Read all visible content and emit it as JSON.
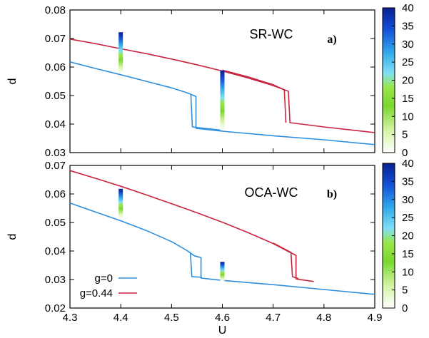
{
  "chart_data": [
    {
      "type": "line",
      "panel_label": "SR-WC",
      "panel_letter": "a)",
      "xlabel": "",
      "ylabel": "d",
      "xlim": [
        4.3,
        4.9
      ],
      "ylim": [
        0.03,
        0.08
      ],
      "yticks": [
        "0.03",
        "0.04",
        "0.05",
        "0.06",
        "0.07",
        "0.08"
      ],
      "series": [
        {
          "name": "g=0",
          "color": "#2f8fdc",
          "points": [
            [
              4.3,
              0.0618
            ],
            [
              4.35,
              0.0595
            ],
            [
              4.4,
              0.0573
            ],
            [
              4.45,
              0.055
            ],
            [
              4.5,
              0.0527
            ],
            [
              4.53,
              0.051
            ],
            [
              4.548,
              0.0497
            ],
            [
              4.548,
              0.0385
            ],
            [
              4.6,
              0.0375
            ],
            [
              4.7,
              0.0359
            ],
            [
              4.8,
              0.0345
            ],
            [
              4.9,
              0.0328
            ]
          ]
        },
        {
          "name": "g=0 (backward)",
          "color": "#2f8fdc",
          "points": [
            [
              4.538,
              0.0502
            ],
            [
              4.541,
              0.039
            ],
            [
              4.6,
              0.0378
            ]
          ]
        },
        {
          "name": "g=0.44",
          "color": "#c9243f",
          "points": [
            [
              4.3,
              0.0698
            ],
            [
              4.35,
              0.0682
            ],
            [
              4.4,
              0.0664
            ],
            [
              4.45,
              0.0647
            ],
            [
              4.5,
              0.0628
            ],
            [
              4.55,
              0.0608
            ],
            [
              4.6,
              0.0586
            ],
            [
              4.65,
              0.0562
            ],
            [
              4.7,
              0.0535
            ],
            [
              4.73,
              0.0515
            ],
            [
              4.733,
              0.0405
            ],
            [
              4.8,
              0.039
            ],
            [
              4.9,
              0.037
            ]
          ]
        },
        {
          "name": "g=0.44 (backward)",
          "color": "#c9243f",
          "points": [
            [
              4.6,
              0.0589
            ],
            [
              4.65,
              0.0566
            ],
            [
              4.7,
              0.0538
            ],
            [
              4.722,
              0.052
            ],
            [
              4.725,
              0.0405
            ]
          ]
        }
      ],
      "colorbars": [
        {
          "x": 4.4,
          "y_range": [
            0.0578,
            0.0722
          ]
        },
        {
          "x": 4.6,
          "y_range": [
            0.0378,
            0.0588
          ]
        }
      ],
      "colorbar_scale": {
        "min": 0,
        "max": 40,
        "ticks": [
          "0",
          "5",
          "10",
          "15",
          "20",
          "25",
          "30",
          "35",
          "40"
        ]
      }
    },
    {
      "type": "line",
      "panel_label": "OCA-WC",
      "panel_letter": "b)",
      "xlabel": "U",
      "ylabel": "d",
      "xlim": [
        4.3,
        4.9
      ],
      "ylim": [
        0.02,
        0.07
      ],
      "xticks": [
        "4.3",
        "4.4",
        "4.5",
        "4.6",
        "4.7",
        "4.8",
        "4.9"
      ],
      "yticks": [
        "0.02",
        "0.03",
        "0.04",
        "0.05",
        "0.06",
        "0.07"
      ],
      "series": [
        {
          "name": "g=0",
          "color": "#2f8fdc",
          "points": [
            [
              4.3,
              0.0568
            ],
            [
              4.35,
              0.0537
            ],
            [
              4.4,
              0.0506
            ],
            [
              4.45,
              0.0472
            ],
            [
              4.5,
              0.0433
            ],
            [
              4.53,
              0.0402
            ],
            [
              4.545,
              0.0383
            ],
            [
              4.558,
              0.0377
            ],
            [
              4.558,
              0.0305
            ],
            [
              4.6,
              0.0297
            ],
            [
              4.7,
              0.0282
            ],
            [
              4.8,
              0.0265
            ],
            [
              4.9,
              0.0248
            ]
          ]
        },
        {
          "name": "g=0 (backward)",
          "color": "#2f8fdc",
          "points": [
            [
              4.537,
              0.0393
            ],
            [
              4.54,
              0.031
            ],
            [
              4.56,
              0.0308
            ]
          ]
        },
        {
          "name": "g=0.44",
          "color": "#c9243f",
          "points": [
            [
              4.3,
              0.0682
            ],
            [
              4.35,
              0.0655
            ],
            [
              4.4,
              0.0627
            ],
            [
              4.45,
              0.0597
            ],
            [
              4.5,
              0.0566
            ],
            [
              4.55,
              0.0534
            ],
            [
              4.6,
              0.0501
            ],
            [
              4.65,
              0.0465
            ],
            [
              4.7,
              0.0426
            ],
            [
              4.73,
              0.0398
            ],
            [
              4.745,
              0.0385
            ],
            [
              4.745,
              0.0302
            ],
            [
              4.78,
              0.0293
            ]
          ]
        },
        {
          "name": "g=0.44 (backward)",
          "color": "#c9243f",
          "points": [
            [
              4.7,
              0.0428
            ],
            [
              4.735,
              0.0395
            ],
            [
              4.738,
              0.031
            ],
            [
              4.75,
              0.0303
            ]
          ]
        }
      ],
      "colorbars": [
        {
          "x": 4.4,
          "y_range": [
            0.0515,
            0.0618
          ]
        },
        {
          "x": 4.6,
          "y_range": [
            0.0295,
            0.0362
          ]
        }
      ],
      "colorbar_scale": {
        "min": 0,
        "max": 40,
        "ticks": [
          "0",
          "5",
          "10",
          "15",
          "20",
          "25",
          "30",
          "35",
          "40"
        ]
      }
    }
  ],
  "legend": {
    "entries": [
      {
        "label": "g=0",
        "color": "#2f8fdc"
      },
      {
        "label": "g=0.44",
        "color": "#c9243f"
      }
    ],
    "placement": "bottom-left of panel b"
  },
  "colormap": [
    "#ffffff",
    "#b8f07a",
    "#6ed02a",
    "#8fdc3a",
    "#3ad0f0",
    "#2a9fe8",
    "#1a60e0",
    "#0a2aa8"
  ]
}
